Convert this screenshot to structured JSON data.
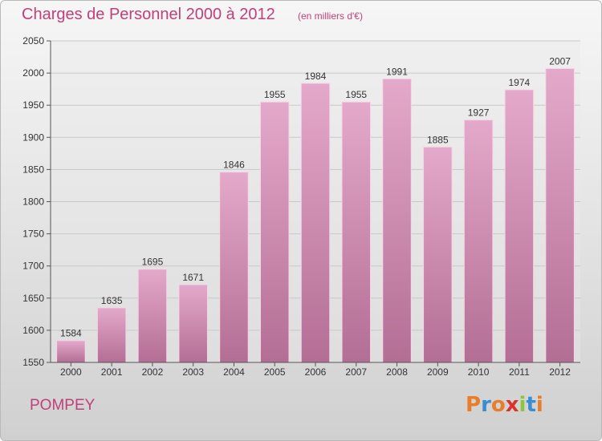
{
  "header": {
    "title": "Charges de Personnel 2000 à 2012",
    "subtitle": "(en milliers d'€)"
  },
  "footer": {
    "commune": "POMPEY",
    "logo_text": "Proxiti"
  },
  "colors": {
    "title": "#c0407a",
    "bar_top": "#e4a9ca",
    "bar_bottom": "#b36e94",
    "logo_letters": [
      "#e87d2b",
      "#3a8dd0",
      "#e87d2b",
      "#d9342b",
      "#8cc63f",
      "#3a8dd0",
      "#e87d2b"
    ]
  },
  "chart_data": {
    "type": "bar",
    "categories": [
      "2000",
      "2001",
      "2002",
      "2003",
      "2004",
      "2005",
      "2006",
      "2007",
      "2008",
      "2009",
      "2010",
      "2011",
      "2012"
    ],
    "values": [
      1584,
      1635,
      1695,
      1671,
      1846,
      1955,
      1984,
      1955,
      1991,
      1885,
      1927,
      1974,
      2007
    ],
    "title": "Charges de Personnel 2000 à 2012",
    "subtitle": "(en milliers d'€)",
    "xlabel": "",
    "ylabel": "",
    "ylim": [
      1550,
      2050
    ],
    "yticks": [
      1550,
      1600,
      1650,
      1700,
      1750,
      1800,
      1850,
      1900,
      1950,
      2000,
      2050
    ],
    "grid": true,
    "legend": "none"
  }
}
